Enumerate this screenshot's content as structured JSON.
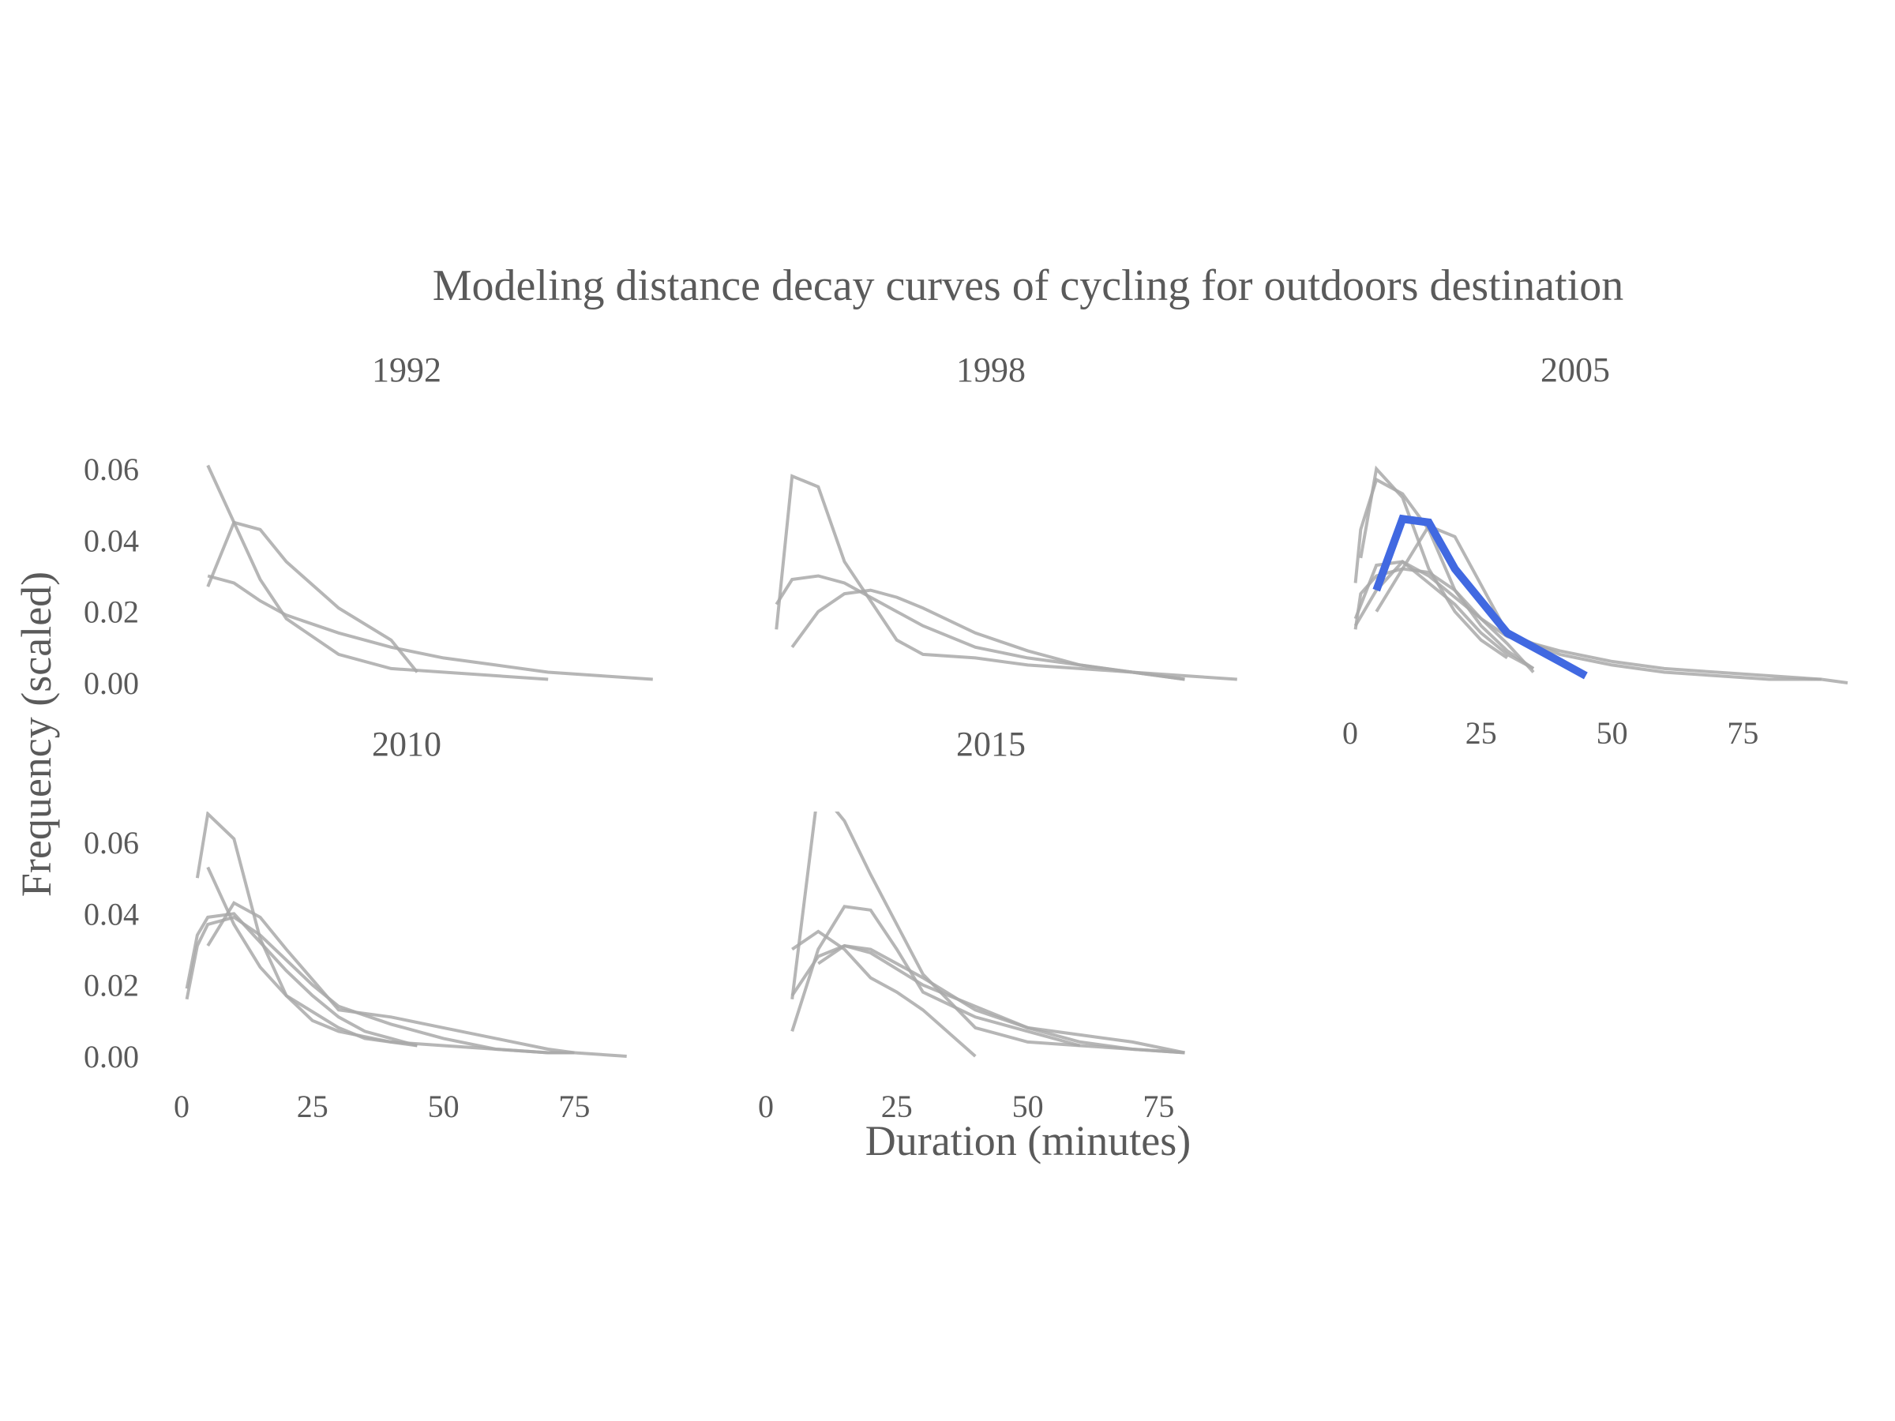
{
  "chart_data": {
    "type": "line",
    "title": "Modeling distance decay curves of cycling for outdoors destination",
    "xlabel": "Duration (minutes)",
    "ylabel": "Frequency (scaled)",
    "xlim": [
      0,
      95
    ],
    "ylim": [
      0,
      0.062
    ],
    "x_ticks": [
      "0",
      "25",
      "50",
      "75"
    ],
    "y_ticks": [
      "0.00",
      "0.02",
      "0.04",
      "0.06"
    ],
    "grid": false,
    "legend": "none",
    "colors": {
      "background_series": "#a9a9a9",
      "highlight": "#4169e1",
      "text": "#5a5a5a"
    },
    "panels": [
      {
        "label": "1992",
        "series": [
          {
            "x": [
              5,
              10,
              15,
              20,
              30,
              40,
              50,
              60,
              70,
              80,
              90
            ],
            "y": [
              0.03,
              0.028,
              0.023,
              0.019,
              0.014,
              0.01,
              0.007,
              0.005,
              0.003,
              0.002,
              0.001
            ]
          },
          {
            "x": [
              5,
              10,
              15,
              20,
              30,
              40,
              45
            ],
            "y": [
              0.027,
              0.045,
              0.043,
              0.034,
              0.021,
              0.012,
              0.003
            ]
          },
          {
            "x": [
              5,
              15,
              20,
              30,
              40,
              70
            ],
            "y": [
              0.061,
              0.029,
              0.018,
              0.008,
              0.004,
              0.001
            ]
          }
        ]
      },
      {
        "label": "1998",
        "series": [
          {
            "x": [
              2,
              5,
              10,
              15,
              20,
              25,
              30,
              40,
              50,
              60,
              70,
              80,
              90
            ],
            "y": [
              0.022,
              0.029,
              0.03,
              0.028,
              0.024,
              0.02,
              0.016,
              0.01,
              0.007,
              0.005,
              0.003,
              0.002,
              0.001
            ]
          },
          {
            "x": [
              2,
              5,
              10,
              15,
              25,
              30,
              40,
              50,
              60,
              70,
              80
            ],
            "y": [
              0.015,
              0.058,
              0.055,
              0.034,
              0.012,
              0.008,
              0.007,
              0.005,
              0.004,
              0.003,
              0.001
            ]
          },
          {
            "x": [
              5,
              10,
              15,
              20,
              25,
              30,
              40,
              50,
              60,
              70,
              80
            ],
            "y": [
              0.01,
              0.02,
              0.025,
              0.026,
              0.024,
              0.021,
              0.014,
              0.009,
              0.005,
              0.003,
              0.001
            ]
          }
        ]
      },
      {
        "label": "2005",
        "series": [
          {
            "x": [
              1,
              2,
              5,
              10,
              15,
              20,
              25,
              30,
              35
            ],
            "y": [
              0.028,
              0.043,
              0.057,
              0.053,
              0.043,
              0.026,
              0.016,
              0.009,
              0.004
            ]
          },
          {
            "x": [
              1,
              2,
              5,
              10,
              15,
              20,
              25,
              30,
              35
            ],
            "y": [
              0.015,
              0.025,
              0.03,
              0.032,
              0.031,
              0.026,
              0.018,
              0.011,
              0.003
            ]
          },
          {
            "x": [
              1,
              5,
              10,
              15,
              20,
              25,
              30,
              35
            ],
            "y": [
              0.018,
              0.033,
              0.034,
              0.028,
              0.022,
              0.014,
              0.008,
              0.004
            ]
          },
          {
            "x": [
              2,
              5,
              10,
              15,
              20,
              25,
              30
            ],
            "y": [
              0.035,
              0.06,
              0.052,
              0.032,
              0.02,
              0.012,
              0.007
            ]
          },
          {
            "x": [
              1,
              5,
              10,
              15,
              20,
              25,
              30,
              40,
              50,
              60,
              70,
              80,
              90
            ],
            "y": [
              0.016,
              0.026,
              0.034,
              0.03,
              0.024,
              0.018,
              0.013,
              0.009,
              0.006,
              0.004,
              0.003,
              0.002,
              0.001
            ]
          },
          {
            "x": [
              5,
              10,
              15,
              20,
              30,
              40,
              50,
              60,
              70,
              80,
              90,
              95
            ],
            "y": [
              0.02,
              0.032,
              0.044,
              0.041,
              0.014,
              0.008,
              0.005,
              0.003,
              0.002,
              0.001,
              0.001,
              0.0
            ]
          },
          {
            "x": [
              5,
              10,
              15,
              20,
              30,
              40,
              45
            ],
            "y": [
              0.026,
              0.046,
              0.045,
              0.032,
              0.014,
              0.006,
              0.002
            ],
            "highlight": true
          }
        ]
      },
      {
        "label": "2010",
        "series": [
          {
            "x": [
              3,
              5,
              10,
              15,
              20,
              25,
              30,
              40,
              50,
              60,
              70,
              75
            ],
            "y": [
              0.05,
              0.068,
              0.061,
              0.033,
              0.017,
              0.01,
              0.007,
              0.004,
              0.003,
              0.002,
              0.001,
              0.001
            ]
          },
          {
            "x": [
              1,
              3,
              5,
              10,
              15,
              20,
              25,
              30,
              35,
              40,
              45
            ],
            "y": [
              0.019,
              0.034,
              0.039,
              0.04,
              0.032,
              0.024,
              0.017,
              0.011,
              0.007,
              0.005,
              0.003
            ]
          },
          {
            "x": [
              1,
              3,
              5,
              10,
              15,
              20,
              25,
              30,
              40,
              50,
              60,
              70,
              75,
              85
            ],
            "y": [
              0.016,
              0.031,
              0.037,
              0.039,
              0.034,
              0.027,
              0.02,
              0.014,
              0.009,
              0.005,
              0.002,
              0.001,
              0.001,
              0.0
            ]
          },
          {
            "x": [
              5,
              10,
              15,
              20,
              30,
              40,
              50,
              60,
              70,
              75
            ],
            "y": [
              0.031,
              0.043,
              0.039,
              0.03,
              0.013,
              0.011,
              0.008,
              0.005,
              0.002,
              0.001
            ]
          },
          {
            "x": [
              5,
              10,
              15,
              20,
              30,
              35,
              45
            ],
            "y": [
              0.053,
              0.037,
              0.025,
              0.017,
              0.008,
              0.005,
              0.003
            ]
          }
        ]
      },
      {
        "label": "2015",
        "series": [
          {
            "x": [
              5,
              10,
              15,
              20,
              30,
              40,
              50,
              60,
              70,
              80
            ],
            "y": [
              0.016,
              0.075,
              0.066,
              0.051,
              0.023,
              0.008,
              0.004,
              0.003,
              0.002,
              0.001
            ]
          },
          {
            "x": [
              5,
              10,
              15,
              20,
              25,
              30,
              40,
              50,
              60
            ],
            "y": [
              0.007,
              0.03,
              0.042,
              0.041,
              0.03,
              0.018,
              0.011,
              0.007,
              0.003
            ]
          },
          {
            "x": [
              5,
              10,
              15,
              20,
              25,
              30,
              40
            ],
            "y": [
              0.03,
              0.035,
              0.03,
              0.022,
              0.018,
              0.013,
              0.0
            ]
          },
          {
            "x": [
              5,
              10,
              15,
              20,
              30,
              40,
              50,
              60,
              70,
              80
            ],
            "y": [
              0.017,
              0.028,
              0.031,
              0.03,
              0.022,
              0.013,
              0.008,
              0.004,
              0.002,
              0.001
            ]
          },
          {
            "x": [
              10,
              15,
              20,
              30,
              40,
              50,
              60,
              70,
              80
            ],
            "y": [
              0.026,
              0.031,
              0.029,
              0.02,
              0.014,
              0.008,
              0.006,
              0.004,
              0.001
            ]
          }
        ]
      }
    ]
  }
}
